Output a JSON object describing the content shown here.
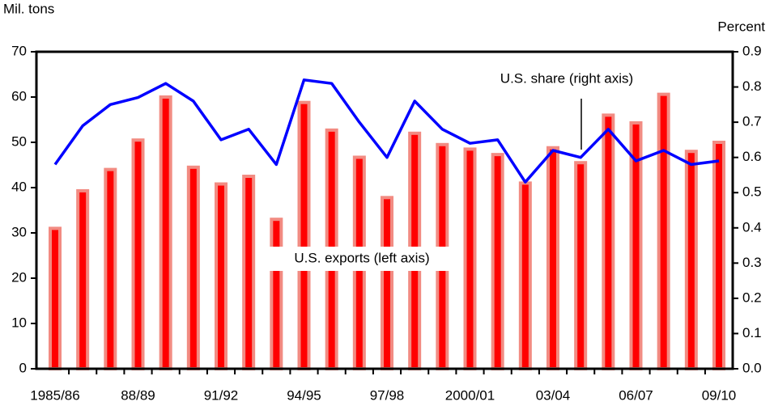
{
  "chart_data": {
    "type": "bar-line",
    "y_label": "Mil. tons",
    "y2_label": "Percent",
    "categories": [
      "1985/86",
      null,
      null,
      "88/89",
      null,
      null,
      "91/92",
      null,
      null,
      "94/95",
      null,
      null,
      "97/98",
      null,
      null,
      "2000/01",
      null,
      null,
      "03/04",
      null,
      null,
      "06/07",
      null,
      null,
      "09/10"
    ],
    "series": [
      {
        "name": "U.S. exports (left axis)",
        "color": "#ff0000",
        "values": [
          31,
          39.3,
          44,
          50.5,
          60,
          44.5,
          40.8,
          42.5,
          33,
          58.8,
          52.7,
          46.7,
          37.8,
          52,
          49.5,
          48.5,
          47.3,
          41,
          48.8,
          45.5,
          56,
          54.3,
          60.6,
          48,
          50
        ]
      },
      {
        "name": "U.S. share (right axis)",
        "color": "#0000ff",
        "axis": "y2",
        "values": [
          0.58,
          0.69,
          0.75,
          0.77,
          0.81,
          0.76,
          0.65,
          0.68,
          0.58,
          0.82,
          0.81,
          0.7,
          0.6,
          0.76,
          0.68,
          0.64,
          0.65,
          0.53,
          0.62,
          0.6,
          0.68,
          0.59,
          0.62,
          0.58,
          0.59
        ]
      }
    ],
    "ylim": [
      0,
      70
    ],
    "yticks": [
      0,
      10,
      20,
      30,
      40,
      50,
      60,
      70
    ],
    "y2lim": [
      0,
      0.9
    ],
    "y2ticks": [
      {
        "value": 0,
        "label": "0.0"
      },
      0.1,
      0.2,
      0.3,
      0.4,
      0.5,
      0.6,
      0.7,
      0.8,
      0.9
    ]
  }
}
